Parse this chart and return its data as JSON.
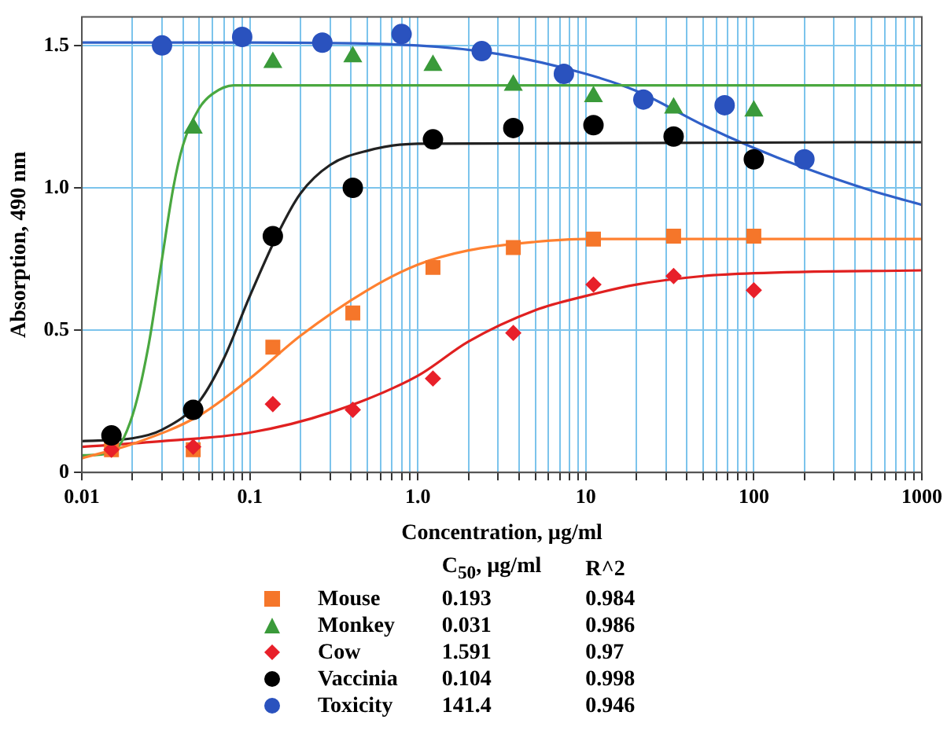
{
  "chart_data": {
    "type": "scatter",
    "xlabel": "Concentration, µg/ml",
    "ylabel": "Absorption, 490 nm",
    "log": "x",
    "grid": true,
    "legend": "bottom",
    "xlim": [
      0.01,
      1000
    ],
    "ylim": [
      0,
      1.6
    ],
    "xticks": [
      {
        "value": 0.01,
        "label": "0.01"
      },
      {
        "value": 0.02,
        "label": null
      },
      {
        "value": 0.03,
        "label": null
      },
      {
        "value": 0.04,
        "label": null
      },
      {
        "value": 0.05,
        "label": null
      },
      {
        "value": 0.06,
        "label": null
      },
      {
        "value": 0.07,
        "label": null
      },
      {
        "value": 0.08,
        "label": null
      },
      {
        "value": 0.09,
        "label": null
      },
      {
        "value": 0.1,
        "label": "0.1"
      },
      {
        "value": 0.2,
        "label": null
      },
      {
        "value": 0.3,
        "label": null
      },
      {
        "value": 0.4,
        "label": null
      },
      {
        "value": 0.5,
        "label": null
      },
      {
        "value": 0.6,
        "label": null
      },
      {
        "value": 0.7,
        "label": null
      },
      {
        "value": 0.8,
        "label": null
      },
      {
        "value": 0.9,
        "label": null
      },
      {
        "value": 1,
        "label": "1.0"
      },
      {
        "value": 2,
        "label": null
      },
      {
        "value": 3,
        "label": null
      },
      {
        "value": 4,
        "label": null
      },
      {
        "value": 5,
        "label": null
      },
      {
        "value": 6,
        "label": null
      },
      {
        "value": 7,
        "label": null
      },
      {
        "value": 8,
        "label": null
      },
      {
        "value": 9,
        "label": null
      },
      10,
      {
        "value": 20,
        "label": null
      },
      {
        "value": 30,
        "label": null
      },
      {
        "value": 40,
        "label": null
      },
      {
        "value": 50,
        "label": null
      },
      {
        "value": 60,
        "label": null
      },
      {
        "value": 70,
        "label": null
      },
      {
        "value": 80,
        "label": null
      },
      {
        "value": 90,
        "label": null
      },
      100,
      {
        "value": 200,
        "label": null
      },
      {
        "value": 300,
        "label": null
      },
      {
        "value": 400,
        "label": null
      },
      {
        "value": 500,
        "label": null
      },
      {
        "value": 600,
        "label": null
      },
      {
        "value": 700,
        "label": null
      },
      {
        "value": 800,
        "label": null
      },
      {
        "value": 900,
        "label": null
      },
      1000
    ],
    "yticks": [
      0,
      0.5,
      {
        "value": 1,
        "label": "1.0"
      },
      1.5
    ],
    "annotations": [
      "C$_{50}$, µg/ml",
      "R^2",
      "0.193",
      "0.984",
      "0.031",
      "0.986",
      "1.591",
      "0.97",
      "0.104",
      "0.998",
      "141.4",
      "0.946"
    ],
    "series": [
      {
        "name": "Mouse",
        "color": "#f5762a",
        "marker": "square",
        "x": [
          0.015,
          0.046,
          0.137,
          0.41,
          1.23,
          3.7,
          11.1,
          33.3,
          100
        ],
        "values": [
          0.08,
          0.08,
          0.44,
          0.56,
          0.72,
          0.79,
          0.82,
          0.83,
          0.83
        ]
      },
      {
        "name": "Monkey",
        "color": "#3a9a3a",
        "marker": "triangle",
        "x": [
          0.046,
          0.137,
          0.41,
          1.23,
          3.7,
          11.1,
          33.3,
          100
        ],
        "values": [
          1.21,
          1.44,
          1.46,
          1.43,
          1.36,
          1.32,
          1.28,
          1.27
        ]
      },
      {
        "name": "Cow",
        "color": "#e8202a",
        "marker": "diamond",
        "x": [
          0.015,
          0.046,
          0.137,
          0.41,
          1.23,
          3.7,
          11.1,
          33.3,
          100
        ],
        "values": [
          0.08,
          0.09,
          0.24,
          0.22,
          0.33,
          0.49,
          0.66,
          0.69,
          0.64
        ]
      },
      {
        "name": "Vaccinia",
        "color": "#000000",
        "marker": "circle",
        "x": [
          0.015,
          0.046,
          0.137,
          0.41,
          1.23,
          3.7,
          11.1,
          33.3,
          100
        ],
        "values": [
          0.13,
          0.22,
          0.83,
          1.0,
          1.17,
          1.21,
          1.22,
          1.18,
          1.1
        ]
      },
      {
        "name": "Toxicity",
        "color": "#2a52be",
        "marker": "circle",
        "x": [
          0.03,
          0.09,
          0.27,
          0.8,
          2.4,
          7.4,
          22,
          67,
          200
        ],
        "values": [
          1.5,
          1.53,
          1.51,
          1.54,
          1.48,
          1.4,
          1.31,
          1.29,
          1.1
        ]
      },
      {
        "type": "line",
        "color": "#ff8030",
        "marker": "none",
        "x": [
          0.01,
          0.02,
          0.05,
          0.1,
          0.2,
          0.5,
          1,
          2,
          5,
          10,
          1000
        ],
        "values": [
          0.05,
          0.1,
          0.2,
          0.33,
          0.48,
          0.64,
          0.73,
          0.78,
          0.81,
          0.82,
          0.82
        ]
      },
      {
        "type": "line",
        "color": "#4aa840",
        "marker": "none",
        "x": [
          0.01,
          0.015,
          0.02,
          0.025,
          0.03,
          0.035,
          0.04,
          0.05,
          0.06,
          0.08,
          1000
        ],
        "values": [
          0.06,
          0.07,
          0.2,
          0.45,
          0.75,
          1.0,
          1.15,
          1.28,
          1.33,
          1.36,
          1.36
        ]
      },
      {
        "type": "line",
        "color": "#e02020",
        "marker": "none",
        "x": [
          0.01,
          0.03,
          0.1,
          0.3,
          1,
          2,
          5,
          10,
          20,
          50,
          100,
          1000
        ],
        "values": [
          0.09,
          0.11,
          0.14,
          0.21,
          0.34,
          0.46,
          0.57,
          0.62,
          0.66,
          0.69,
          0.7,
          0.71
        ]
      },
      {
        "type": "line",
        "color": "#222222",
        "marker": "none",
        "x": [
          0.01,
          0.02,
          0.03,
          0.05,
          0.07,
          0.1,
          0.15,
          0.2,
          0.3,
          0.5,
          1,
          1000
        ],
        "values": [
          0.11,
          0.12,
          0.15,
          0.25,
          0.4,
          0.62,
          0.85,
          0.98,
          1.08,
          1.13,
          1.155,
          1.16
        ]
      },
      {
        "type": "line",
        "color": "#3060c8",
        "marker": "none",
        "x": [
          0.01,
          0.1,
          1,
          3,
          10,
          20,
          50,
          100,
          200,
          500,
          1000
        ],
        "values": [
          1.51,
          1.51,
          1.5,
          1.47,
          1.4,
          1.34,
          1.22,
          1.14,
          1.07,
          0.99,
          0.94
        ]
      }
    ]
  }
}
